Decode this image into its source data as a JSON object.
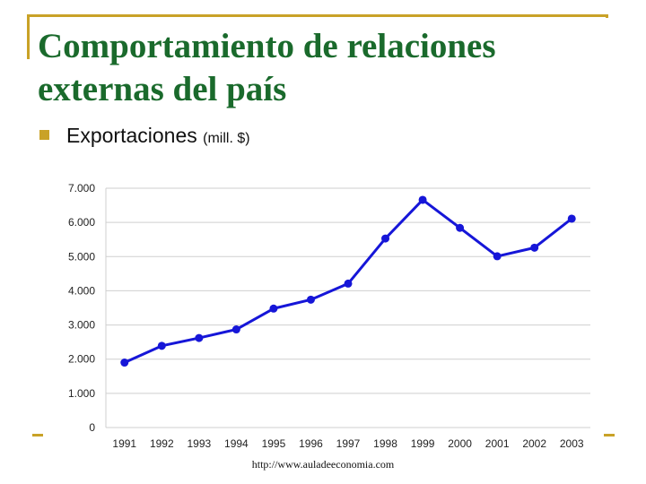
{
  "slide": {
    "title_line1": "Comportamiento de relaciones",
    "title_line2": "externas del país",
    "bullet_main": "Exportaciones",
    "bullet_unit": "(mill. $)",
    "source": "http://www.auladeeconomia.com",
    "accent_color": "#c9a227",
    "title_color": "#1a6a2c"
  },
  "chart_data": {
    "type": "line",
    "title": "",
    "xlabel": "",
    "ylabel": "",
    "x": [
      "1991",
      "1992",
      "1993",
      "1994",
      "1995",
      "1996",
      "1997",
      "1998",
      "1999",
      "2000",
      "2001",
      "2002",
      "2003"
    ],
    "series": [
      {
        "values": [
          1900,
          2390,
          2620,
          2870,
          3480,
          3740,
          4210,
          5530,
          6660,
          5840,
          5010,
          5260,
          6110
        ],
        "color": "#1616d8"
      }
    ],
    "ylim": [
      0,
      7000
    ],
    "yticks": [
      0,
      1000,
      2000,
      3000,
      4000,
      5000,
      6000,
      7000
    ],
    "ytick_labels": [
      "0",
      "1.000",
      "2.000",
      "3.000",
      "4.000",
      "5.000",
      "6.000",
      "7.000"
    ],
    "grid": true
  }
}
